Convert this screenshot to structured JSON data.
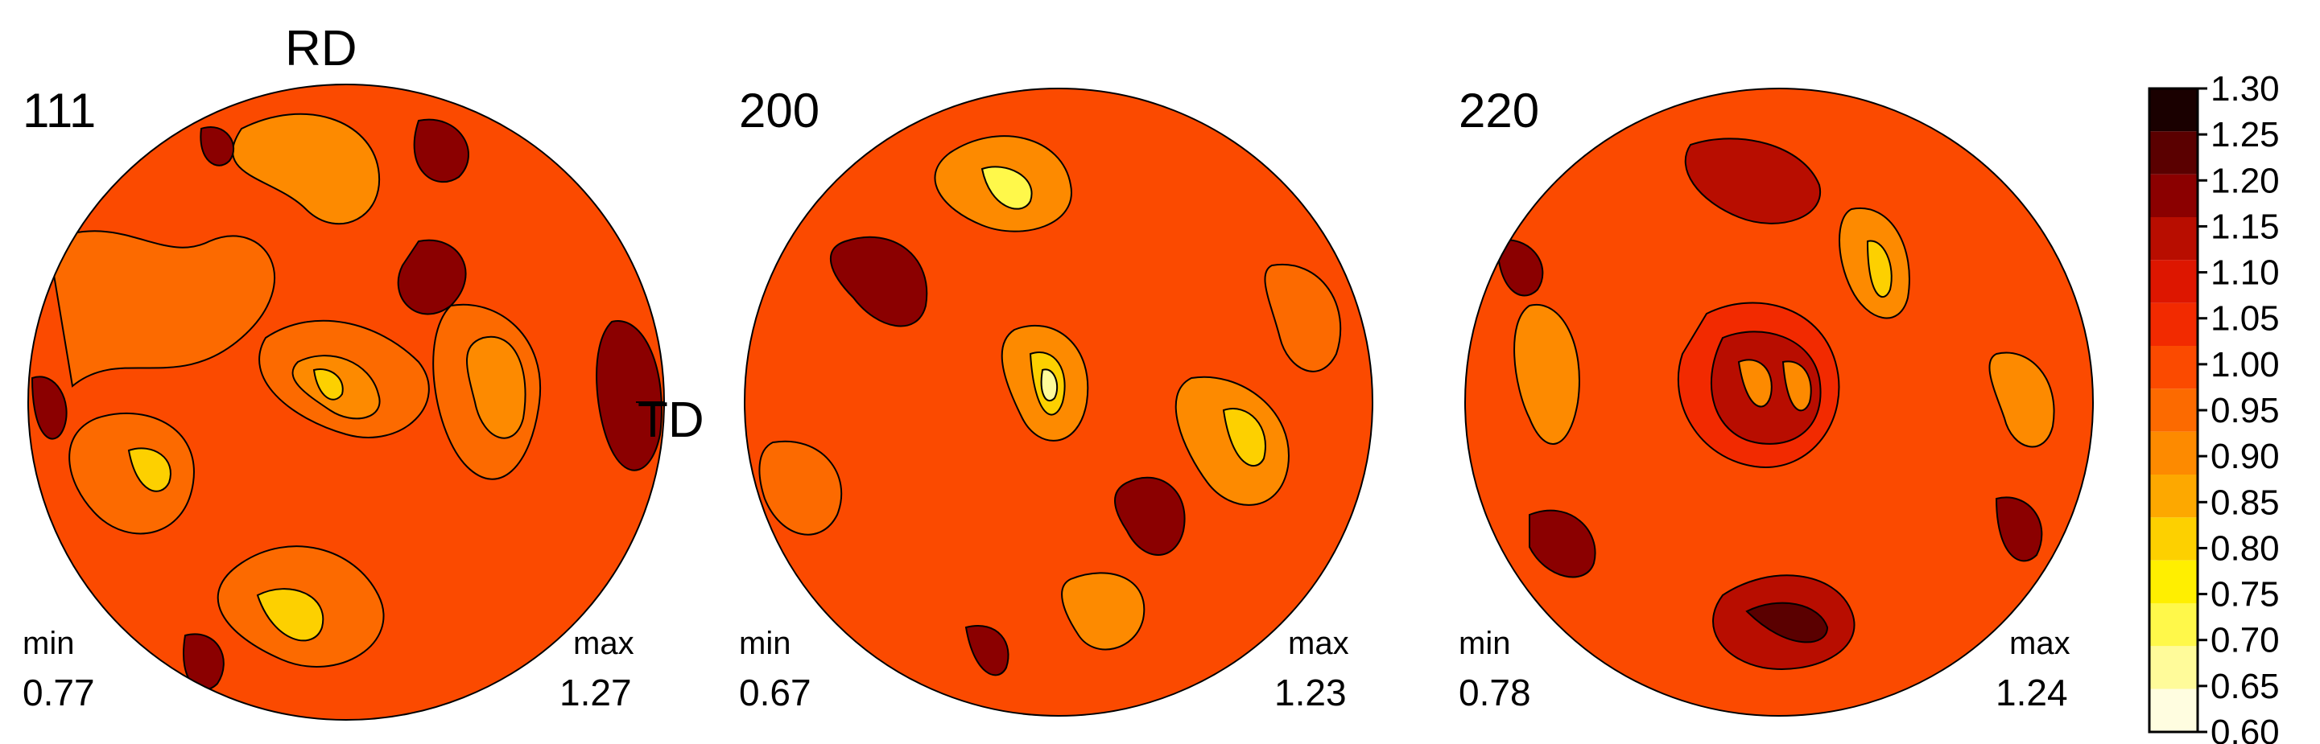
{
  "chart_data": {
    "type": "heatmap",
    "axis_labels": {
      "rd": "RD",
      "td": "TD"
    },
    "pole_figures": [
      {
        "label": "111",
        "min_label": "min",
        "min": "0.77",
        "max_label": "max",
        "max": "1.27"
      },
      {
        "label": "200",
        "min_label": "min",
        "min": "0.67",
        "max_label": "max",
        "max": "1.23"
      },
      {
        "label": "220",
        "min_label": "min",
        "min": "0.78",
        "max_label": "max",
        "max": "1.24"
      }
    ],
    "colorbar": {
      "ticks": [
        "1.30",
        "1.25",
        "1.20",
        "1.15",
        "1.10",
        "1.05",
        "1.00",
        "0.95",
        "0.90",
        "0.85",
        "0.80",
        "0.75",
        "0.70",
        "0.65",
        "0.60"
      ],
      "range": [
        0.6,
        1.3
      ],
      "colors": [
        "#1a0000",
        "#5a0000",
        "#8b0000",
        "#b80d00",
        "#dd1600",
        "#f22a00",
        "#fb4a00",
        "#fc6a00",
        "#fd8a00",
        "#fda800",
        "#fdd000",
        "#ffef00",
        "#fff84a",
        "#fffb9a",
        "#fffde0"
      ]
    }
  }
}
